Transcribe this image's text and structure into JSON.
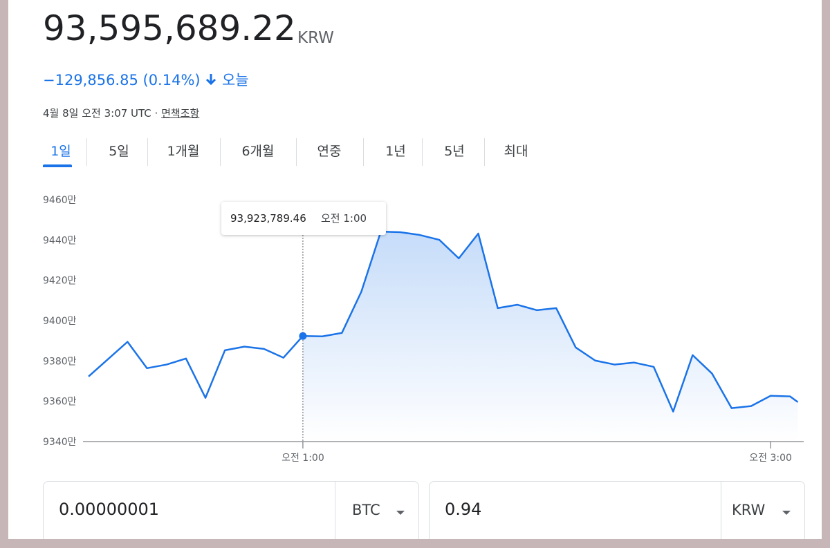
{
  "header": {
    "price": "93,595,689.22",
    "currency": "KRW",
    "change": "−129,856.85 (0.14%)",
    "period": "오늘",
    "timestamp": "4월 8일 오전 3:07 UTC · ",
    "disclaimer": "면책조항"
  },
  "tabs": [
    "1일",
    "5일",
    "1개월",
    "6개월",
    "연중",
    "1년",
    "5년",
    "최대"
  ],
  "chart_data": {
    "type": "line",
    "x": [
      5,
      15,
      20,
      25,
      30,
      35,
      40,
      45,
      50,
      55,
      60,
      65,
      70,
      75,
      80,
      85,
      90,
      95,
      100,
      105,
      110,
      115,
      120,
      125,
      130,
      135,
      140,
      145,
      150,
      155,
      160,
      165,
      170,
      175,
      180,
      185,
      187
    ],
    "series": [
      {
        "color": "#1a73e8",
        "values": [
          93723000,
          93895000,
          93764000,
          93782000,
          93812000,
          93617000,
          93853000,
          93871000,
          93860000,
          93816000,
          93923789.46,
          93922000,
          93939000,
          94144000,
          94442000,
          94439000,
          94425000,
          94401000,
          94309000,
          94432000,
          94062000,
          94079000,
          94052000,
          94062000,
          93867000,
          93802000,
          93782000,
          93792000,
          93771000,
          93549000,
          93829000,
          93737000,
          93566000,
          93576000,
          93627000,
          93624000,
          93595689.22
        ]
      }
    ],
    "xlim": [
      5,
      188.5
    ],
    "xticks": [
      {
        "value": 60,
        "label": "오전 1:00"
      },
      {
        "value": 180,
        "label": "오전 3:00"
      }
    ],
    "ylim": [
      93400000,
      94600000
    ],
    "yticks": [
      {
        "value": 93400000,
        "label": "9340만"
      },
      {
        "value": 93600000,
        "label": "9360만"
      },
      {
        "value": 93800000,
        "label": "9380만"
      },
      {
        "value": 94000000,
        "label": "9400만"
      },
      {
        "value": 94200000,
        "label": "9420만"
      },
      {
        "value": 94400000,
        "label": "9440만"
      },
      {
        "value": 94600000,
        "label": "9460만"
      }
    ],
    "tooltip": {
      "value": "93,923,789.46",
      "time": "오전 1:00"
    }
  },
  "converter": {
    "from_amount": "0.00000001",
    "from_currency": "BTC",
    "to_amount": "0.94",
    "to_currency": "KRW"
  }
}
